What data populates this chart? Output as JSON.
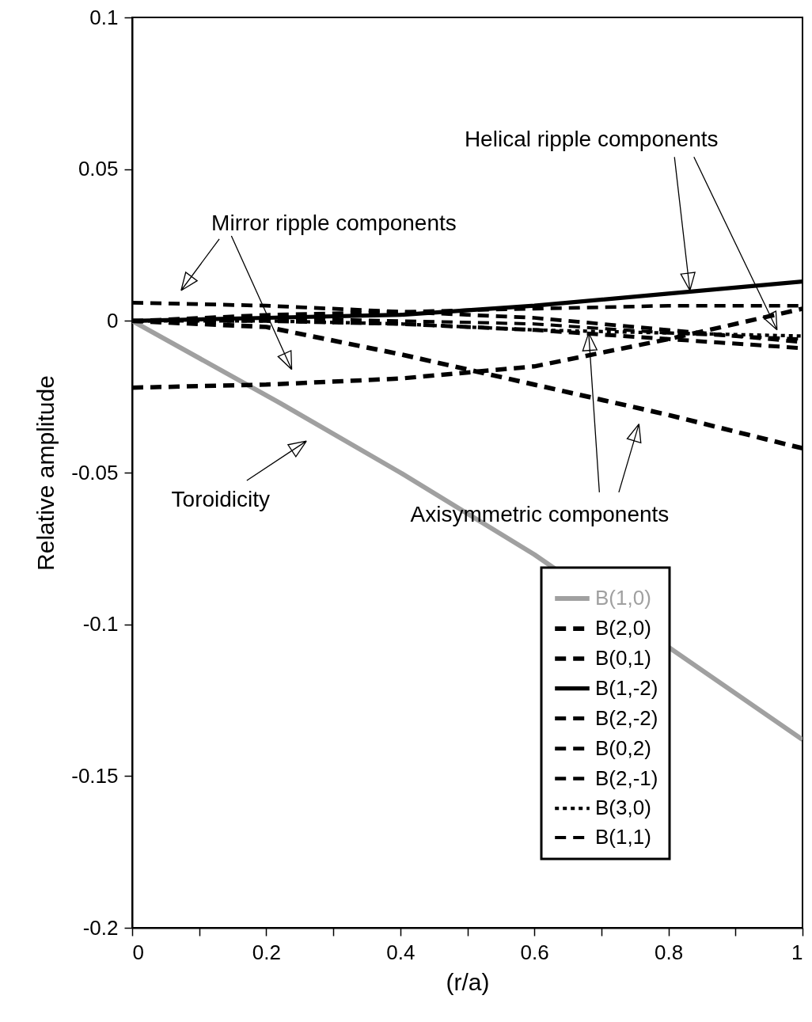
{
  "chart_data": {
    "type": "line",
    "xlabel": "(r/a)",
    "ylabel": "Relative amplitude",
    "x": [
      0,
      0.2,
      0.4,
      0.6,
      0.8,
      1
    ],
    "xlim": [
      0,
      1
    ],
    "xticks": [
      0,
      {
        "value": 0.1,
        "label": null
      },
      0.2,
      {
        "value": 0.3,
        "label": null
      },
      0.4,
      {
        "value": 0.5,
        "label": null
      },
      0.6,
      {
        "value": 0.7,
        "label": null
      },
      0.8,
      {
        "value": 0.9,
        "label": null
      },
      1
    ],
    "ylim": [
      -0.2,
      0.1
    ],
    "yticks": [
      -0.2,
      -0.15,
      -0.1,
      -0.05,
      0,
      0.05,
      0.1
    ],
    "grid": false,
    "legend": "bottom right",
    "marker": "none",
    "series": [
      {
        "name": "B(1,0)",
        "color": "#a0a0a0",
        "line_style": "solid",
        "x": [
          0,
          0.22,
          0.4,
          0.6,
          1
        ],
        "values": [
          0,
          -0.027,
          -0.05,
          -0.077,
          -0.138
        ]
      },
      {
        "name": "B(2,0)",
        "color": "#000000",
        "line_style": "dashed",
        "values": [
          0,
          -0.002,
          -0.011,
          -0.021,
          -0.031,
          -0.042
        ]
      },
      {
        "name": "B(0,1)",
        "color": "#000000",
        "line_style": "dashed",
        "values": [
          -0.022,
          -0.021,
          -0.019,
          -0.015,
          -0.006,
          0.004
        ]
      },
      {
        "name": "B(1,-2)",
        "color": "#000000",
        "line_style": "solid",
        "values": [
          0,
          0.001,
          0.002,
          0.005,
          0.009,
          0.013
        ]
      },
      {
        "name": "B(2,-2)",
        "color": "#000000",
        "line_style": "dashed",
        "values": [
          0,
          0,
          -0.001,
          -0.003,
          -0.006,
          -0.009
        ]
      },
      {
        "name": "B(0,2)",
        "color": "#000000",
        "line_style": "dashed",
        "values": [
          0.006,
          0.005,
          0.003,
          0.001,
          -0.003,
          -0.007
        ]
      },
      {
        "name": "B(2,-1)",
        "color": "#000000",
        "line_style": "dashed",
        "values": [
          0,
          0.002,
          0.003,
          0.004,
          0.005,
          0.005
        ]
      },
      {
        "name": "B(3,0)",
        "color": "#000000",
        "line_style": "dotted",
        "values": [
          0,
          0,
          -0.001,
          -0.003,
          -0.004,
          -0.005
        ]
      },
      {
        "name": "B(1,1)",
        "color": "#000000",
        "line_style": "dashed",
        "values": [
          0,
          0.001,
          0,
          -0.001,
          -0.004,
          -0.006
        ]
      }
    ],
    "annotations": [
      "Mirror ripple components",
      {
        "text": "Helical ripple components",
        "x": 0.832,
        "y": 0.01
      },
      "Toroidicity",
      {
        "text": "Axisymmetric components",
        "x": 0.681,
        "y": -0.004
      }
    ]
  }
}
